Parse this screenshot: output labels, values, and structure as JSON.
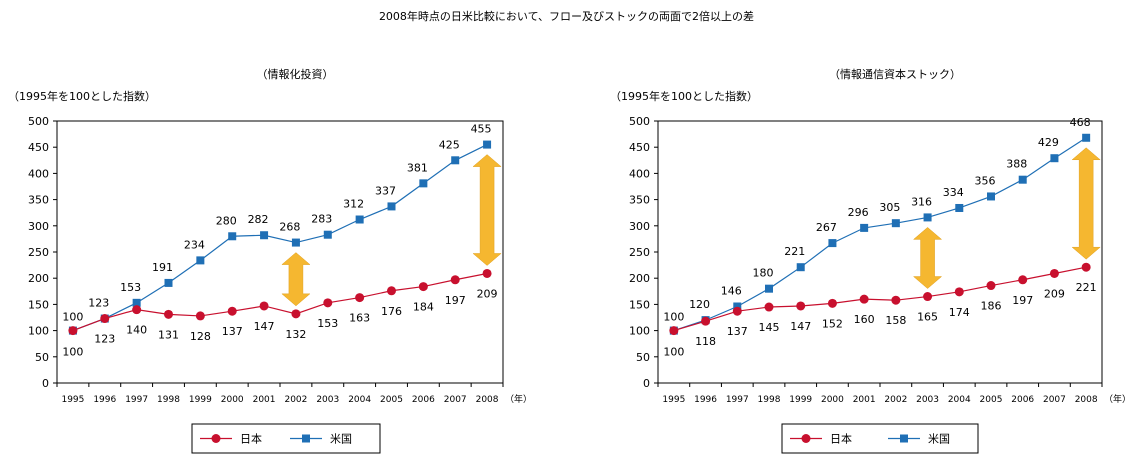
{
  "page_title": "2008年時点の日米比較において、フロー及びストックの両面で2倍以上の差",
  "colors": {
    "japan": "#c8102e",
    "usa": "#1f6fb5",
    "arrow": "#f5b730",
    "gridline": "#000000"
  },
  "chart_data": [
    {
      "type": "line",
      "title": "（情報化投資）",
      "ylabel": "（1995年を100とした指数）",
      "xunit": "（年）",
      "ylim": [
        0,
        500
      ],
      "yticks": [
        0,
        50,
        100,
        150,
        200,
        250,
        300,
        350,
        400,
        450,
        500
      ],
      "x": [
        "1995",
        "1996",
        "1997",
        "1998",
        "1999",
        "2000",
        "2001",
        "2002",
        "2003",
        "2004",
        "2005",
        "2006",
        "2007",
        "2008"
      ],
      "series": [
        {
          "name": "日本",
          "values": [
            100,
            123,
            140,
            131,
            128,
            137,
            147,
            132,
            153,
            163,
            176,
            184,
            197,
            209
          ]
        },
        {
          "name": "米国",
          "values": [
            100,
            123,
            153,
            191,
            234,
            280,
            282,
            268,
            283,
            312,
            337,
            381,
            425,
            455
          ]
        }
      ],
      "arrows": [
        {
          "x": "2002",
          "from": 132,
          "to": 268
        },
        {
          "x": "2008",
          "from": 209,
          "to": 455
        }
      ],
      "legend": {
        "placement": "bottom"
      }
    },
    {
      "type": "line",
      "title": "（情報通信資本ストック）",
      "ylabel": "（1995年を100とした指数）",
      "xunit": "（年）",
      "ylim": [
        0,
        500
      ],
      "yticks": [
        0,
        50,
        100,
        150,
        200,
        250,
        300,
        350,
        400,
        450,
        500
      ],
      "x": [
        "1995",
        "1996",
        "1997",
        "1998",
        "1999",
        "2000",
        "2001",
        "2002",
        "2003",
        "2004",
        "2005",
        "2006",
        "2007",
        "2008"
      ],
      "series": [
        {
          "name": "日本",
          "values": [
            100,
            118,
            137,
            145,
            147,
            152,
            160,
            158,
            165,
            174,
            186,
            197,
            209,
            221
          ]
        },
        {
          "name": "米国",
          "values": [
            100,
            120,
            146,
            180,
            221,
            267,
            296,
            305,
            316,
            334,
            356,
            388,
            429,
            468
          ]
        }
      ],
      "arrows": [
        {
          "x": "2003",
          "from": 165,
          "to": 316
        },
        {
          "x": "2008",
          "from": 221,
          "to": 468
        }
      ],
      "legend": {
        "placement": "bottom"
      }
    }
  ]
}
